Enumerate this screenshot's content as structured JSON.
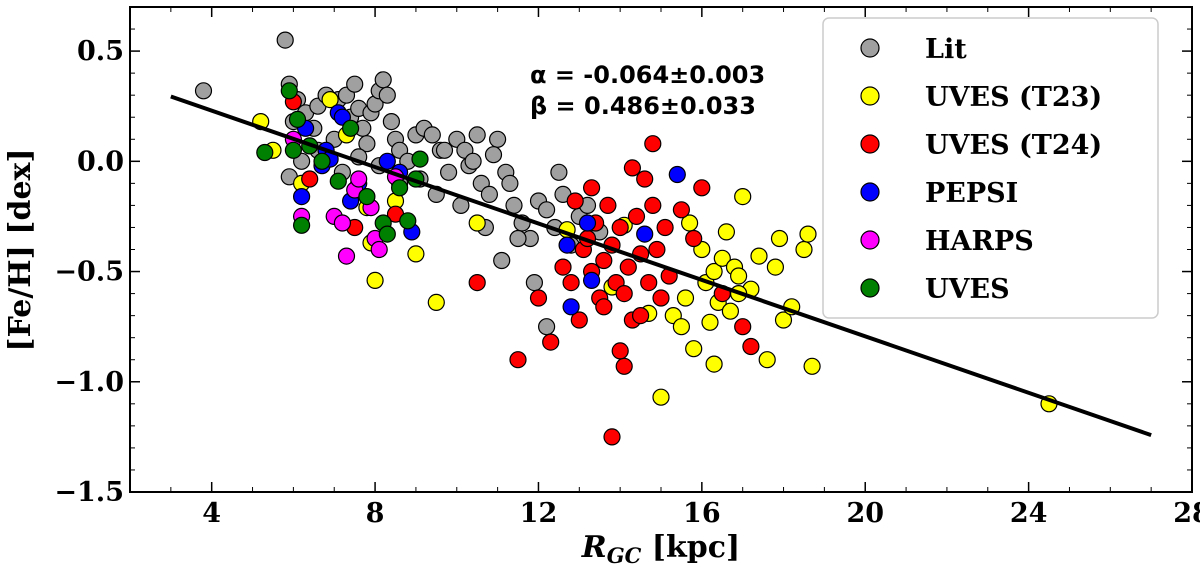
{
  "chart_data": {
    "type": "scatter",
    "title": "",
    "xlabel": {
      "main": "R",
      "sub": "GC",
      "rest": " [kpc]"
    },
    "ylabel": "[Fe/H] [dex]",
    "xlim": [
      2,
      28
    ],
    "ylim": [
      -1.5,
      0.7
    ],
    "xticks": [
      4,
      8,
      12,
      16,
      20,
      24,
      28
    ],
    "xtick_labels": [
      "4",
      "8",
      "12",
      "16",
      "20",
      "24",
      "28"
    ],
    "yticks": [
      0.5,
      0.0,
      -0.5,
      -1.0,
      -1.5
    ],
    "ytick_labels": [
      "0.5",
      "0.0",
      "−0.5",
      "−1.0",
      "−1.5"
    ],
    "grid": false,
    "legend_position": "top-right",
    "annotations": [
      "α = -0.064±0.003",
      "β = 0.486±0.033"
    ],
    "fit_line": {
      "slope": -0.064,
      "intercept": 0.486,
      "x_range": [
        3,
        27
      ]
    },
    "series": [
      {
        "name": "Lit",
        "color": "#a0a0a0",
        "points": [
          [
            3.8,
            0.32
          ],
          [
            5.8,
            0.55
          ],
          [
            5.9,
            0.35
          ],
          [
            6.1,
            0.28
          ],
          [
            6.0,
            0.18
          ],
          [
            6.3,
            0.22
          ],
          [
            6.5,
            0.15
          ],
          [
            6.6,
            0.25
          ],
          [
            6.8,
            0.3
          ],
          [
            7.0,
            0.1
          ],
          [
            7.1,
            0.28
          ],
          [
            7.3,
            0.3
          ],
          [
            7.4,
            0.2
          ],
          [
            7.5,
            0.35
          ],
          [
            7.6,
            0.24
          ],
          [
            7.7,
            0.15
          ],
          [
            7.8,
            0.08
          ],
          [
            7.9,
            0.22
          ],
          [
            8.0,
            0.26
          ],
          [
            8.1,
            0.32
          ],
          [
            8.2,
            0.37
          ],
          [
            8.3,
            0.3
          ],
          [
            8.4,
            0.18
          ],
          [
            8.5,
            0.1
          ],
          [
            8.6,
            0.05
          ],
          [
            8.8,
            0.0
          ],
          [
            9.0,
            0.12
          ],
          [
            9.2,
            0.15
          ],
          [
            9.4,
            0.12
          ],
          [
            9.6,
            0.05
          ],
          [
            9.8,
            -0.05
          ],
          [
            10.0,
            0.1
          ],
          [
            10.2,
            0.05
          ],
          [
            10.3,
            -0.02
          ],
          [
            10.5,
            0.12
          ],
          [
            10.6,
            -0.1
          ],
          [
            10.8,
            -0.15
          ],
          [
            11.0,
            0.1
          ],
          [
            11.2,
            -0.05
          ],
          [
            11.4,
            -0.2
          ],
          [
            11.6,
            -0.28
          ],
          [
            11.8,
            -0.35
          ],
          [
            12.0,
            -0.18
          ],
          [
            12.2,
            -0.22
          ],
          [
            12.4,
            -0.3
          ],
          [
            12.6,
            -0.15
          ],
          [
            12.8,
            -0.38
          ],
          [
            13.0,
            -0.25
          ],
          [
            13.2,
            -0.2
          ],
          [
            13.5,
            -0.32
          ],
          [
            5.9,
            -0.07
          ],
          [
            6.2,
            0.0
          ],
          [
            6.6,
            0.05
          ],
          [
            7.2,
            -0.05
          ],
          [
            7.6,
            0.02
          ],
          [
            8.1,
            -0.02
          ],
          [
            8.6,
            -0.1
          ],
          [
            9.1,
            -0.08
          ],
          [
            9.5,
            -0.15
          ],
          [
            10.1,
            -0.2
          ],
          [
            10.7,
            -0.3
          ],
          [
            11.1,
            -0.45
          ],
          [
            11.5,
            -0.35
          ],
          [
            11.9,
            -0.55
          ],
          [
            12.2,
            -0.75
          ],
          [
            9.7,
            0.05
          ],
          [
            10.4,
            0.0
          ],
          [
            10.9,
            0.03
          ],
          [
            11.3,
            -0.1
          ],
          [
            12.5,
            -0.05
          ]
        ]
      },
      {
        "name": "UVES (T23)",
        "color": "#ffff00",
        "points": [
          [
            5.2,
            0.18
          ],
          [
            5.5,
            0.05
          ],
          [
            6.2,
            -0.1
          ],
          [
            6.9,
            0.28
          ],
          [
            7.3,
            0.12
          ],
          [
            7.8,
            -0.21
          ],
          [
            7.9,
            -0.37
          ],
          [
            8.0,
            -0.54
          ],
          [
            8.5,
            -0.18
          ],
          [
            9.0,
            -0.42
          ],
          [
            9.5,
            -0.64
          ],
          [
            10.5,
            -0.28
          ],
          [
            12.7,
            -0.31
          ],
          [
            13.8,
            -0.57
          ],
          [
            14.1,
            -0.29
          ],
          [
            14.7,
            -0.69
          ],
          [
            15.0,
            -1.07
          ],
          [
            15.3,
            -0.7
          ],
          [
            15.6,
            -0.62
          ],
          [
            15.7,
            -0.28
          ],
          [
            15.8,
            -0.85
          ],
          [
            16.0,
            -0.4
          ],
          [
            16.1,
            -0.55
          ],
          [
            16.2,
            -0.73
          ],
          [
            16.3,
            -0.5
          ],
          [
            16.4,
            -0.64
          ],
          [
            16.5,
            -0.44
          ],
          [
            16.6,
            -0.32
          ],
          [
            16.7,
            -0.68
          ],
          [
            16.8,
            -0.48
          ],
          [
            16.9,
            -0.52
          ],
          [
            17.0,
            -0.16
          ],
          [
            17.2,
            -0.58
          ],
          [
            17.4,
            -0.43
          ],
          [
            17.6,
            -0.9
          ],
          [
            17.8,
            -0.48
          ],
          [
            17.9,
            -0.35
          ],
          [
            18.0,
            -0.72
          ],
          [
            18.2,
            -0.66
          ],
          [
            18.5,
            -0.4
          ],
          [
            18.6,
            -0.33
          ],
          [
            18.7,
            -0.93
          ],
          [
            24.5,
            -1.1
          ],
          [
            16.3,
            -0.92
          ],
          [
            15.5,
            -0.75
          ],
          [
            16.9,
            -0.6
          ]
        ]
      },
      {
        "name": "UVES (T24)",
        "color": "#ff0000",
        "points": [
          [
            6.0,
            0.27
          ],
          [
            6.4,
            -0.08
          ],
          [
            7.5,
            -0.3
          ],
          [
            8.5,
            -0.24
          ],
          [
            10.5,
            -0.55
          ],
          [
            11.5,
            -0.9
          ],
          [
            12.0,
            -0.62
          ],
          [
            12.3,
            -0.82
          ],
          [
            12.6,
            -0.48
          ],
          [
            12.8,
            -0.55
          ],
          [
            13.0,
            -0.72
          ],
          [
            13.1,
            -0.4
          ],
          [
            13.2,
            -0.35
          ],
          [
            13.3,
            -0.5
          ],
          [
            13.4,
            -0.28
          ],
          [
            13.5,
            -0.62
          ],
          [
            13.6,
            -0.45
          ],
          [
            13.7,
            -0.2
          ],
          [
            13.8,
            -0.38
          ],
          [
            13.9,
            -0.55
          ],
          [
            14.0,
            -0.3
          ],
          [
            14.1,
            -0.6
          ],
          [
            14.2,
            -0.48
          ],
          [
            14.3,
            -0.72
          ],
          [
            14.4,
            -0.25
          ],
          [
            14.5,
            -0.42
          ],
          [
            14.6,
            -0.08
          ],
          [
            14.7,
            -0.55
          ],
          [
            14.8,
            -0.2
          ],
          [
            14.9,
            -0.4
          ],
          [
            15.0,
            -0.62
          ],
          [
            15.1,
            -0.3
          ],
          [
            15.2,
            -0.52
          ],
          [
            15.5,
            -0.22
          ],
          [
            15.8,
            -0.35
          ],
          [
            16.0,
            -0.12
          ],
          [
            16.5,
            -0.6
          ],
          [
            17.0,
            -0.75
          ],
          [
            17.2,
            -0.84
          ],
          [
            13.8,
            -1.25
          ],
          [
            14.1,
            -0.93
          ],
          [
            14.0,
            -0.86
          ],
          [
            14.3,
            -0.03
          ],
          [
            12.9,
            -0.18
          ],
          [
            13.3,
            -0.12
          ],
          [
            14.8,
            0.08
          ],
          [
            13.6,
            -0.66
          ],
          [
            14.5,
            -0.7
          ]
        ]
      },
      {
        "name": "PEPSI",
        "color": "#0000ff",
        "points": [
          [
            6.3,
            0.15
          ],
          [
            6.7,
            -0.02
          ],
          [
            6.8,
            0.05
          ],
          [
            6.9,
            0.01
          ],
          [
            7.1,
            0.22
          ],
          [
            7.2,
            0.2
          ],
          [
            7.4,
            -0.18
          ],
          [
            8.3,
            0.0
          ],
          [
            8.6,
            -0.05
          ],
          [
            8.9,
            -0.32
          ],
          [
            12.7,
            -0.38
          ],
          [
            12.8,
            -0.66
          ],
          [
            13.2,
            -0.28
          ],
          [
            13.3,
            -0.54
          ],
          [
            14.6,
            -0.33
          ],
          [
            15.4,
            -0.06
          ],
          [
            6.2,
            -0.16
          ],
          [
            7.6,
            -0.1
          ]
        ]
      },
      {
        "name": "HARPS",
        "color": "#ff00ff",
        "points": [
          [
            6.0,
            0.1
          ],
          [
            6.2,
            -0.25
          ],
          [
            7.0,
            -0.25
          ],
          [
            7.2,
            -0.28
          ],
          [
            7.3,
            -0.43
          ],
          [
            7.5,
            -0.13
          ],
          [
            7.6,
            -0.08
          ],
          [
            7.9,
            -0.21
          ],
          [
            8.0,
            -0.35
          ],
          [
            8.1,
            -0.4
          ],
          [
            8.5,
            -0.07
          ]
        ]
      },
      {
        "name": "UVES",
        "color": "#008000",
        "points": [
          [
            5.3,
            0.04
          ],
          [
            5.9,
            0.32
          ],
          [
            6.1,
            0.19
          ],
          [
            6.2,
            -0.29
          ],
          [
            6.4,
            0.07
          ],
          [
            6.7,
            0.0
          ],
          [
            7.1,
            -0.09
          ],
          [
            7.4,
            0.15
          ],
          [
            7.8,
            -0.16
          ],
          [
            8.2,
            -0.28
          ],
          [
            8.3,
            -0.33
          ],
          [
            8.6,
            -0.12
          ],
          [
            8.8,
            -0.27
          ],
          [
            9.0,
            -0.08
          ],
          [
            9.1,
            0.01
          ],
          [
            6.0,
            0.05
          ]
        ]
      }
    ]
  }
}
